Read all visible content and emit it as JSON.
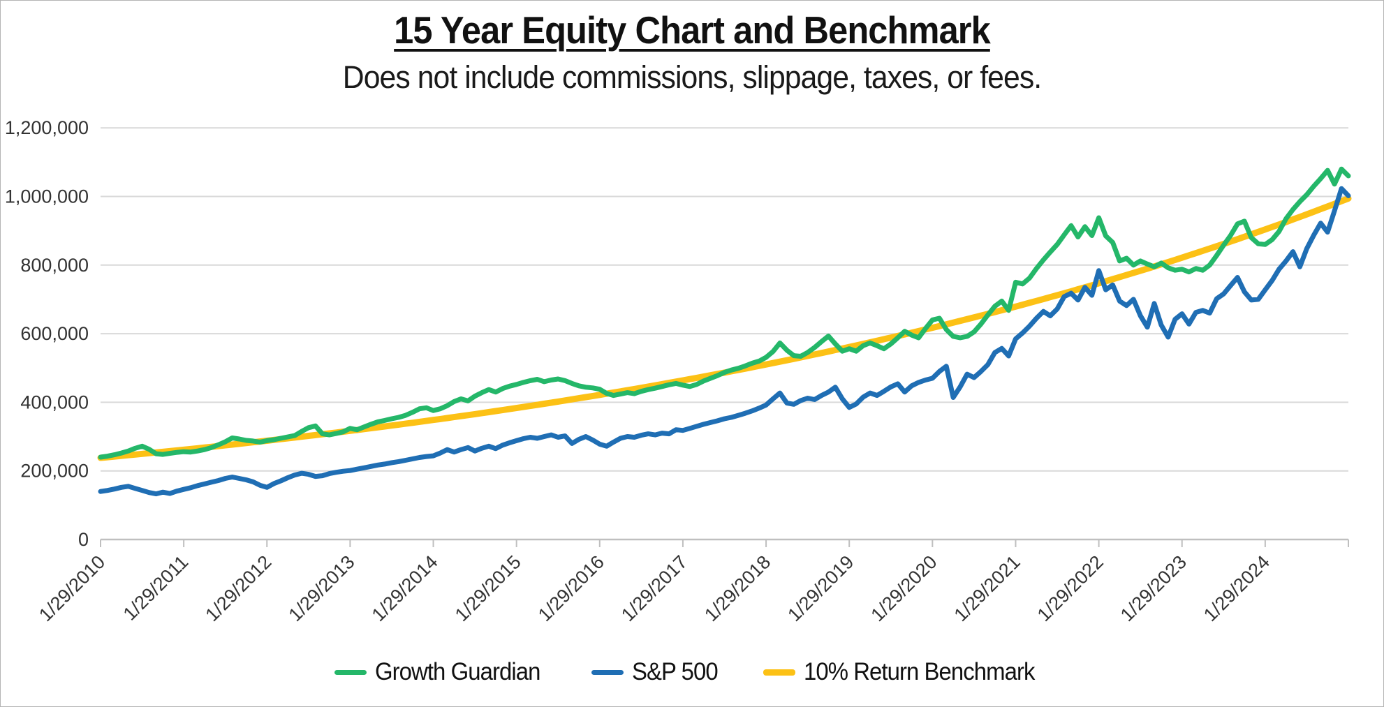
{
  "page": {
    "background": "#ffffff",
    "border_color": "#b4b4b4"
  },
  "chart": {
    "title": "15 Year Equity Chart and Benchmark",
    "subtitle": "Does not include commissions, slippage, taxes, or fees.",
    "legend": [
      {
        "label": "Growth Guardian",
        "color": "#24b769"
      },
      {
        "label": "S&P 500",
        "color": "#1f6eb4"
      },
      {
        "label": "10% Return Benchmark",
        "color": "#fcc115"
      }
    ]
  },
  "chart_data": {
    "type": "line",
    "title": "15 Year Equity Chart and Benchmark",
    "subtitle": "Does not include commissions, slippage, taxes, or fees.",
    "x_description": "181 monthly points from 1/29/2010 to 1/29/2025; tick labels every 12 months",
    "x_tick_labels": [
      "1/29/2010",
      "1/29/2011",
      "1/29/2012",
      "1/29/2013",
      "1/29/2014",
      "1/29/2015",
      "1/29/2016",
      "1/29/2017",
      "1/29/2018",
      "1/29/2019",
      "1/29/2020",
      "1/29/2021",
      "1/29/2022",
      "1/29/2023",
      "1/29/2024"
    ],
    "y_tick_labels": [
      "0",
      "200,000",
      "400,000",
      "600,000",
      "800,000",
      "1,000,000",
      "1,200,000"
    ],
    "ylim": [
      0,
      1200000
    ],
    "y_step": 200000,
    "values_unit": "USD thousands",
    "value_scale": 1000,
    "grid": "horizontal",
    "legend_position": "bottom",
    "axis_color": "#bfbfbf",
    "grid_color": "#d9d9d9",
    "tick_label_color": "#333333",
    "series": [
      {
        "name": "Growth Guardian",
        "color": "#24b769",
        "stroke_width": 7,
        "values": [
          240,
          243,
          247,
          252,
          258,
          266,
          272,
          263,
          250,
          248,
          251,
          254,
          256,
          255,
          258,
          262,
          268,
          276,
          285,
          296,
          293,
          289,
          287,
          284,
          288,
          291,
          295,
          299,
          303,
          315,
          326,
          331,
          308,
          305,
          309,
          314,
          324,
          320,
          328,
          336,
          343,
          347,
          352,
          356,
          362,
          371,
          381,
          384,
          376,
          381,
          390,
          402,
          410,
          404,
          418,
          428,
          437,
          430,
          440,
          447,
          452,
          458,
          463,
          467,
          460,
          465,
          468,
          463,
          455,
          448,
          444,
          442,
          438,
          426,
          420,
          424,
          428,
          425,
          432,
          437,
          441,
          446,
          451,
          455,
          450,
          446,
          452,
          462,
          470,
          478,
          487,
          494,
          499,
          506,
          514,
          520,
          531,
          548,
          573,
          552,
          536,
          534,
          545,
          560,
          577,
          593,
          570,
          549,
          556,
          549,
          565,
          573,
          565,
          556,
          570,
          588,
          607,
          596,
          588,
          615,
          640,
          645,
          612,
          592,
          588,
          592,
          605,
          628,
          655,
          680,
          695,
          668,
          750,
          745,
          762,
          790,
          815,
          838,
          860,
          888,
          915,
          882,
          912,
          886,
          938,
          885,
          866,
          812,
          820,
          800,
          812,
          803,
          795,
          806,
          792,
          785,
          788,
          780,
          790,
          785,
          800,
          828,
          858,
          886,
          920,
          928,
          880,
          862,
          860,
          874,
          898,
          935,
          962,
          985,
          1005,
          1030,
          1052,
          1076,
          1036,
          1080,
          1060
        ]
      },
      {
        "name": "S&P 500",
        "color": "#1f6eb4",
        "stroke_width": 7,
        "values": [
          140,
          143,
          147,
          152,
          155,
          149,
          143,
          137,
          133,
          138,
          134,
          141,
          146,
          151,
          157,
          162,
          167,
          172,
          178,
          182,
          178,
          174,
          168,
          158,
          152,
          163,
          171,
          180,
          188,
          193,
          190,
          184,
          186,
          192,
          196,
          199,
          201,
          205,
          209,
          213,
          217,
          220,
          224,
          227,
          231,
          235,
          239,
          242,
          244,
          252,
          262,
          255,
          262,
          268,
          258,
          266,
          272,
          265,
          275,
          282,
          288,
          294,
          298,
          295,
          300,
          305,
          298,
          302,
          280,
          292,
          300,
          290,
          278,
          272,
          284,
          295,
          300,
          298,
          304,
          308,
          305,
          310,
          308,
          320,
          318,
          324,
          330,
          336,
          341,
          346,
          352,
          356,
          362,
          368,
          375,
          383,
          392,
          410,
          427,
          398,
          394,
          405,
          412,
          408,
          420,
          430,
          444,
          410,
          385,
          395,
          415,
          427,
          420,
          432,
          445,
          454,
          430,
          448,
          458,
          465,
          470,
          490,
          505,
          414,
          445,
          482,
          472,
          490,
          510,
          545,
          557,
          535,
          585,
          602,
          622,
          645,
          665,
          652,
          672,
          708,
          718,
          698,
          735,
          712,
          784,
          728,
          742,
          695,
          682,
          700,
          652,
          619,
          688,
          625,
          590,
          642,
          658,
          628,
          662,
          668,
          660,
          702,
          716,
          740,
          764,
          722,
          698,
          700,
          728,
          755,
          788,
          812,
          839,
          795,
          848,
          887,
          922,
          896,
          958,
          1023,
          1002
        ]
      },
      {
        "name": "10% Return Benchmark",
        "color": "#fcc115",
        "stroke_width": 9,
        "model": {
          "type": "compound_growth",
          "start_value_thousands": 238,
          "annual_return_pct": 10,
          "points": 181
        }
      }
    ]
  }
}
